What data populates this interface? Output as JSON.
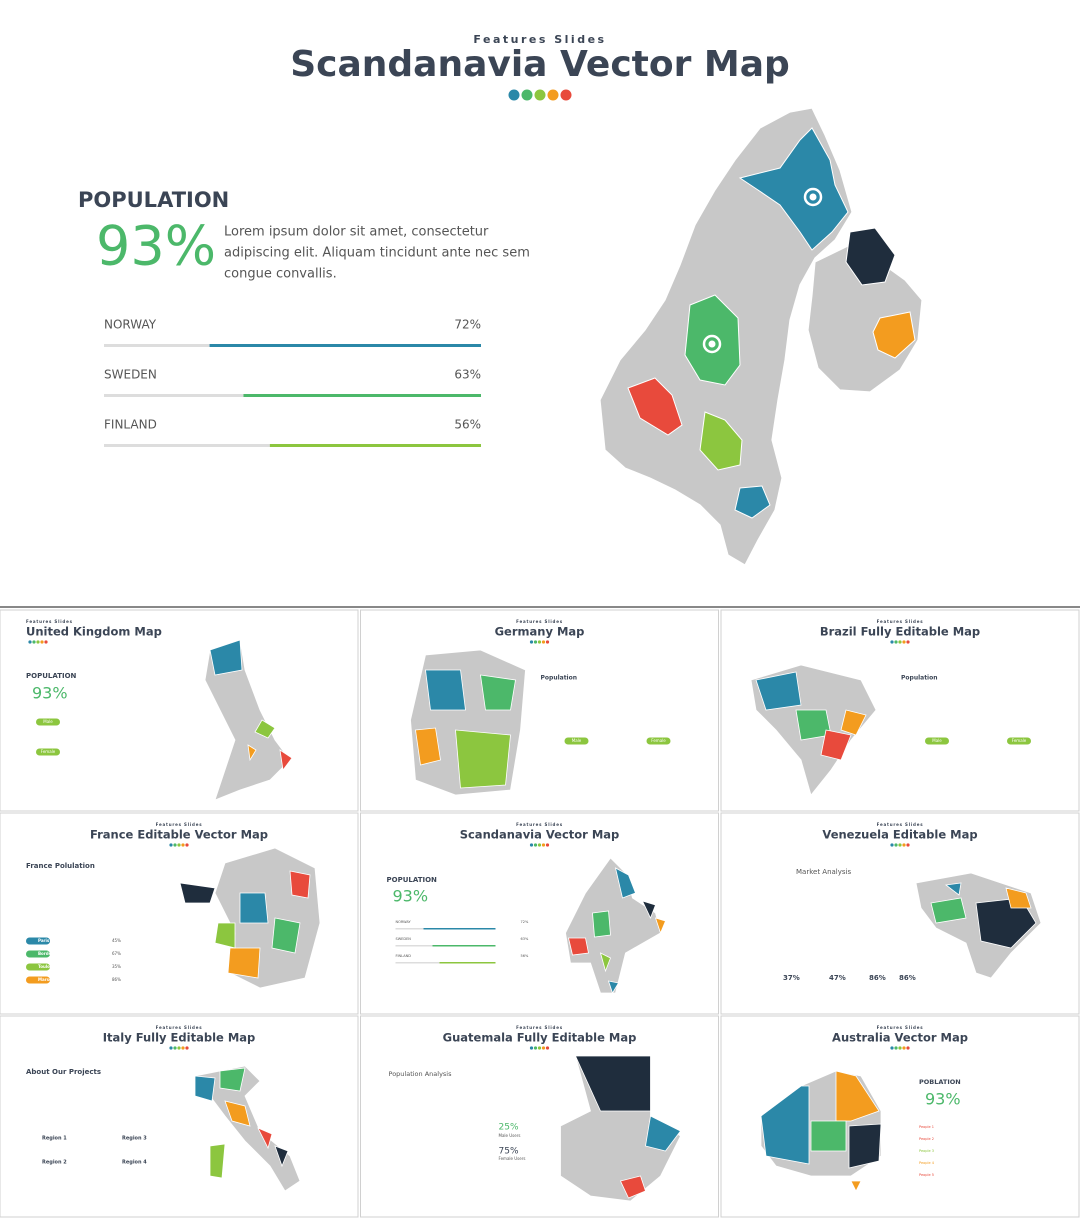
{
  "header": {
    "subtitle": "Features Slides",
    "title": "Scandanavia Vector Map",
    "dot_colors": [
      "#2b88a8",
      "#4cb86a",
      "#8cc63f",
      "#f39c1f",
      "#e84a3c"
    ]
  },
  "population": {
    "label": "POPULATION",
    "percent": "93%",
    "text_lines": [
      "Lorem ipsum dolor sit amet, consectetur",
      "adipiscing elit. Aliquam tincidunt ante nec sem",
      "congue convallis."
    ],
    "bars": [
      {
        "name": "NORWAY",
        "value": 72,
        "value_label": "72%",
        "color": "#2b88a8"
      },
      {
        "name": "SWEDEN",
        "value": 63,
        "value_label": "63%",
        "color": "#4cb86a"
      },
      {
        "name": "FINLAND",
        "value": 56,
        "value_label": "56%",
        "color": "#8cc63f"
      }
    ]
  },
  "thumb_subtitle": "Features Slides",
  "thumbs": [
    {
      "title": "United Kingdom Map",
      "texts": [
        "POPULATION",
        "93%",
        "Male",
        "Female"
      ]
    },
    {
      "title": "Germany Map",
      "texts": [
        "Population",
        "Male",
        "Female"
      ]
    },
    {
      "title": "Brazil Fully Editable Map",
      "texts": [
        "Population",
        "Male",
        "Female"
      ]
    },
    {
      "title": "France Editable Vector Map",
      "texts": [
        "France Polulation",
        "Paris",
        "Bordeaux",
        "Toulouse",
        "Marseille",
        "45%",
        "67%",
        "35%",
        "86%"
      ]
    },
    {
      "title": "Scandanavia Vector Map",
      "texts": [
        "POPULATION",
        "93%",
        "NORWAY",
        "SWEDEN",
        "FINLAND",
        "72%",
        "63%",
        "56%"
      ]
    },
    {
      "title": "Venezuela Editable Map",
      "texts": [
        "Market Analysis",
        "37%",
        "47%",
        "86%",
        "86%"
      ]
    },
    {
      "title": "Italy Fully Editable Map",
      "texts": [
        "About Our Projects",
        "Region 1",
        "Region 2",
        "Region 3",
        "Region 4"
      ]
    },
    {
      "title": "Guatemala Fully Editable Map",
      "texts": [
        "Population Analysis",
        "25%",
        "Male Users",
        "75%",
        "Female Users"
      ]
    },
    {
      "title": "Australia Vector Map",
      "texts": [
        "POBLATION",
        "93%",
        "People 1",
        "People 2",
        "People 3",
        "People 4",
        "People 5"
      ]
    }
  ]
}
